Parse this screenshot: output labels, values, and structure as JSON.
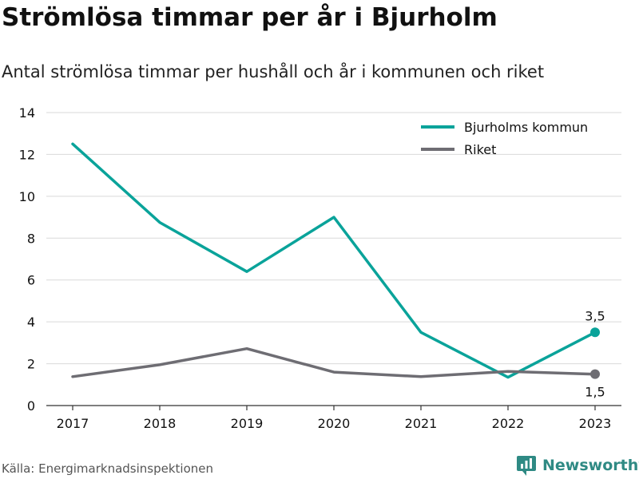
{
  "header": {
    "title": "Strömlösa timmar per år i Bjurholm",
    "subtitle": "Antal strömlösa timmar per hushåll och år i kommunen och riket"
  },
  "footer": {
    "source": "Källa: Energimarknadsinspektionen",
    "brand": "Newsworthy"
  },
  "icons": {
    "brand_logo": "newsworthy-logo-icon"
  },
  "colors": {
    "bjurholm": "#0aa39a",
    "riket": "#6e6d73",
    "grid": "#d9d9d9",
    "axis": "#333333",
    "text": "#111111",
    "brand": "#2f8a84"
  },
  "chart_data": {
    "type": "line",
    "x": [
      "2017",
      "2018",
      "2019",
      "2020",
      "2021",
      "2022",
      "2023"
    ],
    "ylim": [
      0,
      14
    ],
    "yticks": [
      0,
      2,
      4,
      6,
      8,
      10,
      12,
      14
    ],
    "grid": true,
    "legend_position": "top-right",
    "series": [
      {
        "name": "Bjurholms kommun",
        "values": [
          12.5,
          8.75,
          6.4,
          9.0,
          3.5,
          1.35,
          3.5
        ],
        "end_label": "3,5",
        "end_label_position": "above"
      },
      {
        "name": "Riket",
        "values": [
          1.38,
          1.95,
          2.72,
          1.6,
          1.38,
          1.63,
          1.5
        ],
        "end_label": "1,5",
        "end_label_position": "below"
      }
    ]
  }
}
